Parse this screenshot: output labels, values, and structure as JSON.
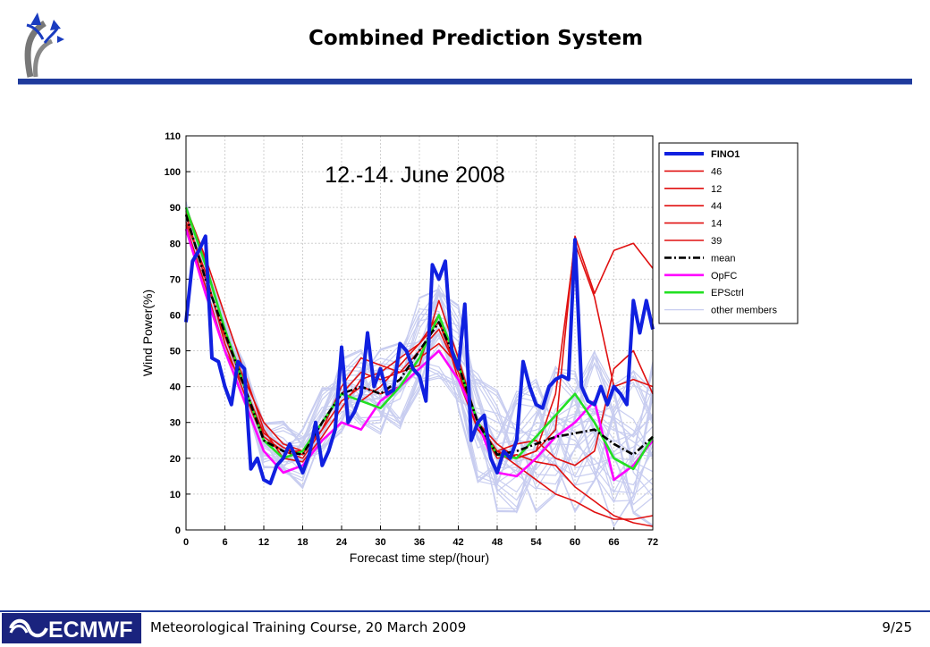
{
  "slide": {
    "title": "Combined Prediction System",
    "footer_text": "Meteorological Training Course, 20 March 2009",
    "page_number": "9/25",
    "logo_text": "ECMWF",
    "colors": {
      "accent": "#1f3a9c",
      "logo_bg": "#1a237e"
    }
  },
  "chart_data": {
    "type": "line",
    "annotation": "12.-14. June 2008",
    "xlabel": "Forecast time step/(hour)",
    "ylabel": "Wind Power(%)",
    "xlim": [
      0,
      72
    ],
    "ylim": [
      0,
      110
    ],
    "xticks": [
      0,
      6,
      12,
      18,
      24,
      30,
      36,
      42,
      48,
      54,
      60,
      66,
      72
    ],
    "yticks": [
      0,
      10,
      20,
      30,
      40,
      50,
      60,
      70,
      80,
      90,
      100,
      110
    ],
    "grid": true,
    "legend_position": "right",
    "x": [
      0,
      3,
      6,
      9,
      12,
      15,
      18,
      21,
      24,
      27,
      30,
      33,
      36,
      39,
      42,
      45,
      48,
      51,
      54,
      57,
      60,
      63,
      66,
      69,
      72
    ],
    "series": [
      {
        "name": "FINO1",
        "color": "#1020e0",
        "width": 4,
        "dash": "",
        "x": [
          0,
          1,
          2,
          3,
          4,
          5,
          6,
          7,
          8,
          9,
          10,
          11,
          12,
          13,
          14,
          15,
          16,
          17,
          18,
          19,
          20,
          21,
          22,
          23,
          24,
          25,
          26,
          27,
          28,
          29,
          30,
          31,
          32,
          33,
          34,
          35,
          36,
          37,
          38,
          39,
          40,
          41,
          42,
          43,
          44,
          45,
          46,
          47,
          48,
          49,
          50,
          51,
          52,
          53,
          54,
          55,
          56,
          57,
          58,
          59,
          60,
          61,
          62,
          63,
          64,
          65,
          66,
          67,
          68,
          69,
          70,
          71,
          72
        ],
        "values": [
          58,
          75,
          78,
          82,
          48,
          47,
          40,
          35,
          47,
          45,
          17,
          20,
          14,
          13,
          18,
          20,
          24,
          20,
          16,
          21,
          30,
          18,
          22,
          28,
          51,
          30,
          33,
          38,
          55,
          40,
          45,
          38,
          39,
          52,
          50,
          45,
          43,
          36,
          74,
          70,
          75,
          50,
          45,
          63,
          25,
          30,
          32,
          20,
          16,
          22,
          20,
          25,
          47,
          40,
          35,
          34,
          40,
          42,
          43,
          42,
          81,
          40,
          36,
          35,
          40,
          35,
          40,
          38,
          35,
          64,
          55,
          64,
          56
        ]
      },
      {
        "name": "46",
        "color": "#e01010",
        "width": 1.6,
        "dash": "",
        "values": [
          89,
          75,
          55,
          42,
          30,
          24,
          22,
          30,
          38,
          44,
          42,
          44,
          50,
          56,
          44,
          28,
          22,
          20,
          22,
          38,
          80,
          65,
          40,
          42,
          40
        ]
      },
      {
        "name": "12",
        "color": "#e01010",
        "width": 1.6,
        "dash": "",
        "values": [
          86,
          72,
          52,
          38,
          25,
          22,
          20,
          28,
          36,
          40,
          38,
          40,
          48,
          52,
          46,
          30,
          20,
          21,
          19,
          18,
          12,
          8,
          4,
          2,
          1
        ]
      },
      {
        "name": "44",
        "color": "#e01010",
        "width": 1.6,
        "dash": "",
        "values": [
          90,
          76,
          60,
          44,
          28,
          20,
          19,
          26,
          34,
          42,
          44,
          48,
          52,
          58,
          44,
          30,
          22,
          18,
          14,
          10,
          8,
          5,
          3,
          3,
          4
        ]
      },
      {
        "name": "14",
        "color": "#e01010",
        "width": 1.6,
        "dash": "",
        "values": [
          85,
          68,
          50,
          40,
          27,
          23,
          21,
          30,
          38,
          36,
          40,
          46,
          52,
          60,
          42,
          28,
          22,
          24,
          25,
          20,
          18,
          22,
          45,
          50,
          38
        ]
      },
      {
        "name": "39",
        "color": "#e01010",
        "width": 1.6,
        "dash": "",
        "values": [
          88,
          70,
          54,
          40,
          26,
          22,
          22,
          28,
          40,
          48,
          46,
          44,
          46,
          64,
          48,
          30,
          24,
          20,
          22,
          28,
          82,
          66,
          78,
          80,
          73
        ]
      },
      {
        "name": "mean",
        "color": "#000000",
        "width": 2.6,
        "dash": "8,3,2,3",
        "values": [
          88,
          70,
          55,
          40,
          25,
          22,
          21,
          30,
          38,
          40,
          38,
          42,
          50,
          58,
          46,
          30,
          21,
          22,
          24,
          26,
          27,
          28,
          24,
          21,
          26
        ]
      },
      {
        "name": "OpFC",
        "color": "#ff00ff",
        "width": 2.6,
        "dash": "",
        "values": [
          84,
          66,
          50,
          36,
          22,
          16,
          18,
          25,
          30,
          28,
          36,
          40,
          45,
          50,
          42,
          30,
          16,
          15,
          20,
          26,
          30,
          36,
          14,
          18,
          25
        ]
      },
      {
        "name": "EPSctrl",
        "color": "#22e022",
        "width": 2.6,
        "dash": "",
        "values": [
          90,
          74,
          56,
          40,
          25,
          20,
          22,
          30,
          38,
          36,
          34,
          40,
          48,
          60,
          46,
          30,
          21,
          20,
          26,
          32,
          38,
          30,
          20,
          17,
          26
        ]
      }
    ],
    "other_members": {
      "name": "other members",
      "color": "#c8cdf0",
      "width": 1.2
    }
  }
}
